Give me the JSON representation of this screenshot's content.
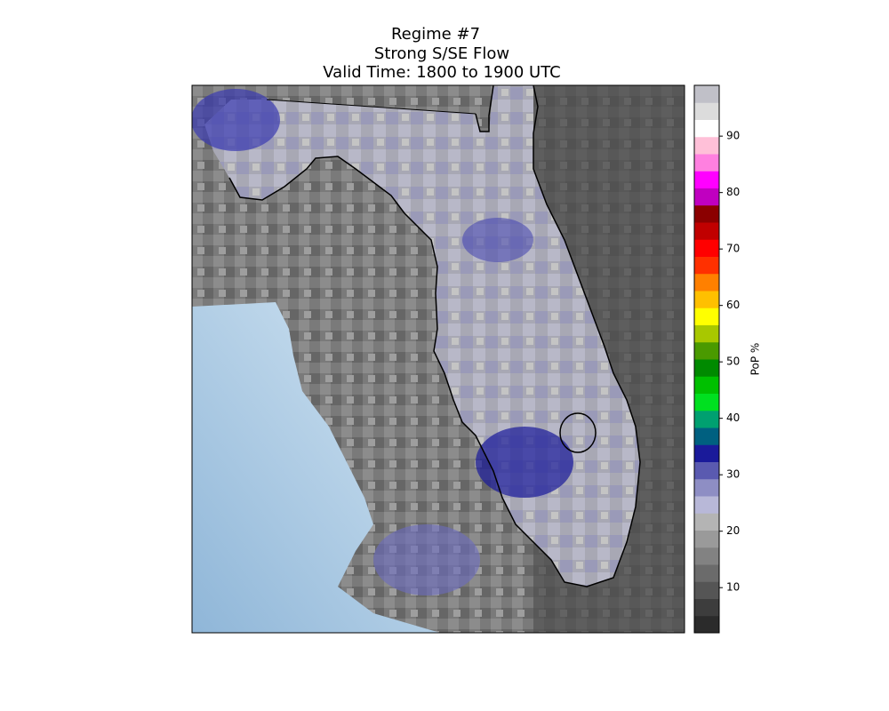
{
  "map": {
    "title": "Regime #7",
    "subtitle": "Strong S/SE Flow",
    "valid_time": "Valid Time: 1800 to 1900 UTC",
    "colorbar": {
      "label": "PoP %",
      "lim": [
        2,
        99
      ],
      "ticks": [
        10,
        20,
        30,
        40,
        50,
        60,
        70,
        80,
        90
      ],
      "colors": [
        "#2b2b2b",
        "#3d3d3d",
        "#555555",
        "#6b6b6b",
        "#828282",
        "#9a9a9a",
        "#b4b4b4",
        "#b8b8d8",
        "#8e8ec4",
        "#5a5ab0",
        "#1a1a9a",
        "#006080",
        "#00a070",
        "#00e020",
        "#00c000",
        "#008a00",
        "#4a9a00",
        "#a8c800",
        "#ffff00",
        "#ffc000",
        "#ff8000",
        "#ff3000",
        "#ff0000",
        "#c00000",
        "#8b0000",
        "#c000c0",
        "#ff00ff",
        "#ff80e0",
        "#ffc0d8",
        "#ffffff",
        "#dcdcdc",
        "#c0c0c8"
      ]
    }
  }
}
